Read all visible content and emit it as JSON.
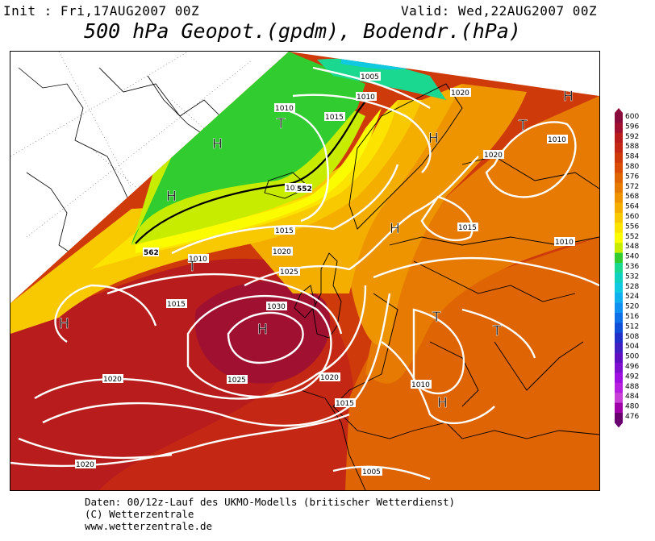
{
  "header": {
    "init": "Init : Fri,17AUG2007 00Z",
    "valid": "Valid: Wed,22AUG2007 00Z",
    "title": "500 hPa Geopot.(gpdm), Bodendr.(hPa)"
  },
  "isobar_labels": [
    "1005",
    "1010",
    "1010",
    "1015",
    "1020",
    "1020",
    "1010",
    "1010",
    "1015",
    "1020",
    "1010",
    "1025",
    "1030",
    "1015",
    "1020",
    "1025",
    "1020",
    "1015",
    "1010",
    "1015",
    "1010",
    "1020",
    "1005"
  ],
  "geopotential_labels": [
    "562",
    "552"
  ],
  "pressure_centers": [
    "H",
    "T",
    "H",
    "H",
    "H",
    "T",
    "H",
    "T",
    "H",
    "H",
    "T",
    "T",
    "H"
  ],
  "legend": {
    "levels": [
      "600",
      "596",
      "592",
      "588",
      "584",
      "580",
      "576",
      "572",
      "568",
      "564",
      "560",
      "556",
      "552",
      "548",
      "540",
      "536",
      "532",
      "528",
      "524",
      "520",
      "516",
      "512",
      "508",
      "504",
      "500",
      "496",
      "492",
      "488",
      "484",
      "480",
      "476"
    ],
    "colors": [
      "#8a0c3c",
      "#a01030",
      "#b81c1c",
      "#c42814",
      "#cf3a0a",
      "#d84c06",
      "#df6404",
      "#e67a02",
      "#ee9400",
      "#f4ae00",
      "#f8c800",
      "#fce400",
      "#fcfc00",
      "#c8ec00",
      "#30cc30",
      "#1ad890",
      "#10d0c0",
      "#10c8e0",
      "#10b0f0",
      "#1090f0",
      "#1070e8",
      "#1050d8",
      "#2030c8",
      "#4020c0",
      "#6010c0",
      "#8010d0",
      "#a010e0",
      "#b820e0",
      "#c840d8",
      "#a000a8",
      "#6a0070"
    ]
  },
  "footer": {
    "line1": "Daten: 00/12z-Lauf des UKMO-Modells (britischer Wetterdienst)",
    "line2": "(C) Wetterzentrale",
    "line3": "www.wetterzentrale.de"
  }
}
